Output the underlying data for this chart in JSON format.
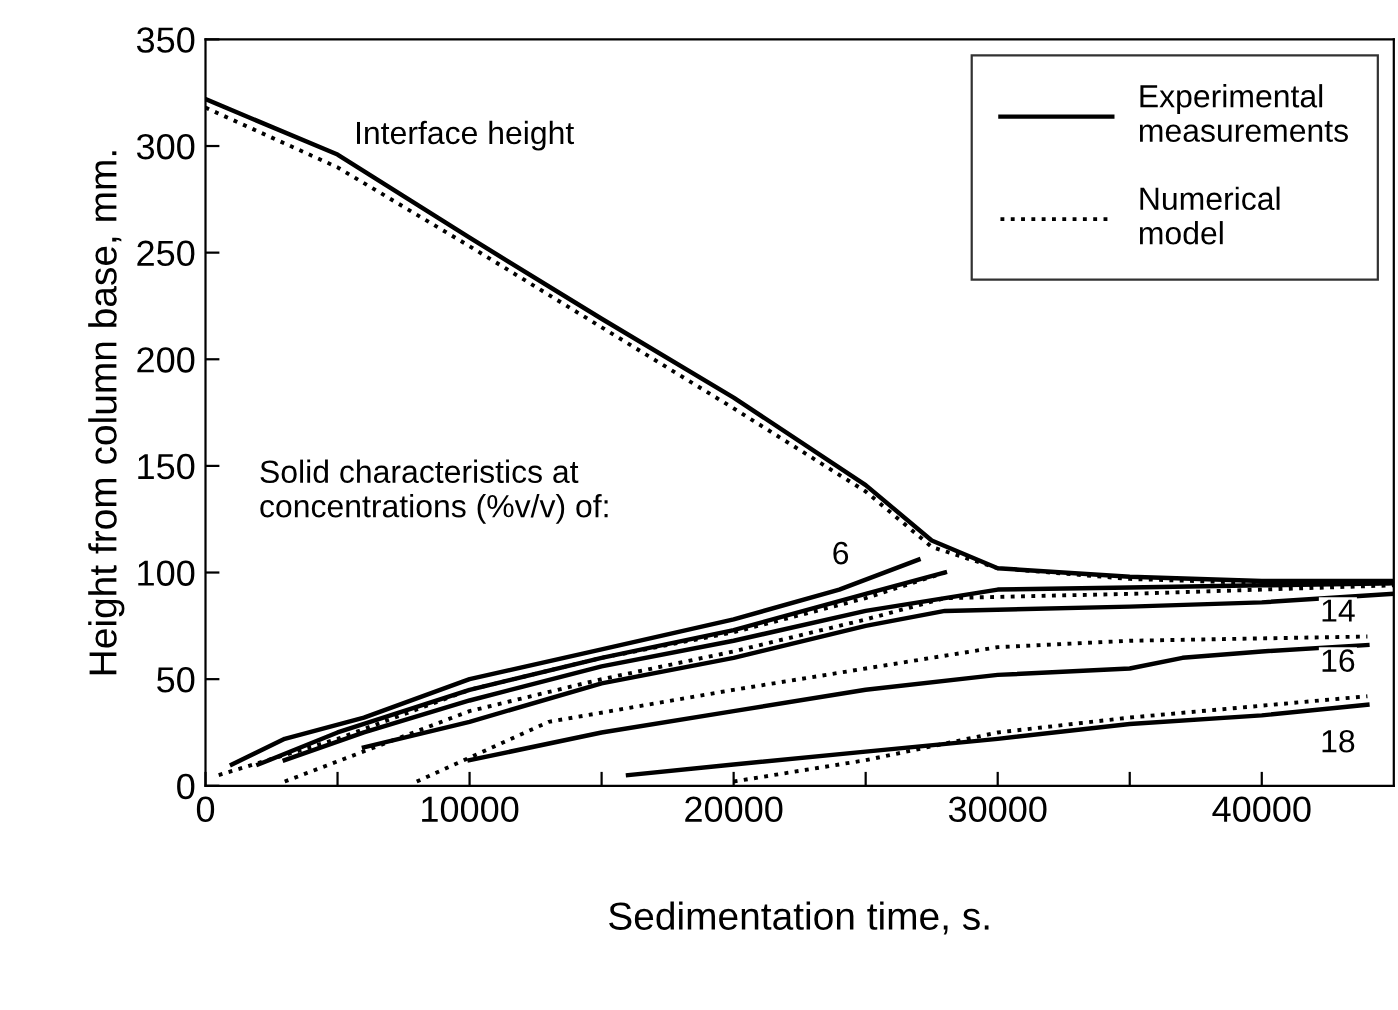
{
  "chart_data": {
    "type": "line",
    "xlabel": "Sedimentation time, s.",
    "ylabel": "Height from column base, mm.",
    "xlim": [
      0,
      45000
    ],
    "ylim": [
      0,
      350
    ],
    "xticks": [
      0,
      {
        "value": 5000,
        "label": null
      },
      10000,
      {
        "value": 15000,
        "label": null
      },
      20000,
      {
        "value": 25000,
        "label": null
      },
      30000,
      {
        "value": 35000,
        "label": null
      },
      40000
    ],
    "yticks": [
      0,
      50,
      100,
      150,
      200,
      250,
      300,
      350
    ],
    "grid": false,
    "legend": "top right",
    "marker": "none",
    "annotations": [
      "Interface height",
      "Solid characteristics at\nconcentrations (%v/v) of:",
      "6",
      "14",
      "16",
      "18"
    ],
    "series": [
      {
        "name": "Experimental\nmeasurements",
        "color": "#000000",
        "line_style": "solid",
        "x": [
          0,
          5000,
          10000,
          15000,
          20000,
          25000,
          27500,
          30000,
          35000,
          40000,
          45000
        ],
        "values": [
          322,
          296,
          257,
          219,
          182,
          141,
          115,
          102,
          98,
          96,
          96
        ]
      },
      {
        "name": "Numerical\nmodel",
        "color": "#000000",
        "line_style": "dotted",
        "x": [
          0,
          5000,
          10000,
          15000,
          20000,
          25000,
          27500,
          30000,
          35000,
          40000,
          45000
        ],
        "values": [
          318,
          290,
          253,
          215,
          177,
          138,
          112,
          102,
          97,
          95,
          95
        ]
      },
      {
        "color": "#000000",
        "line_style": "solid",
        "x": [
          1000,
          3000,
          6000,
          10000,
          15000,
          20000,
          24000,
          27000
        ],
        "values": [
          10,
          22,
          32,
          50,
          64,
          78,
          92,
          106
        ]
      },
      {
        "color": "#000000",
        "line_style": "solid",
        "x": [
          2000,
          5000,
          10000,
          15000,
          20000,
          25000,
          28000
        ],
        "values": [
          10,
          25,
          45,
          60,
          73,
          90,
          100
        ]
      },
      {
        "color": "#000000",
        "line_style": "solid",
        "x": [
          3000,
          6000,
          10000,
          15000,
          20000,
          25000,
          30000,
          35000,
          40000,
          45000
        ],
        "values": [
          12,
          25,
          40,
          56,
          68,
          82,
          92,
          93,
          94,
          95
        ]
      },
      {
        "color": "#000000",
        "line_style": "solid",
        "x": [
          6000,
          10000,
          15000,
          20000,
          25000,
          28000,
          35000,
          40000,
          45000
        ],
        "values": [
          18,
          30,
          48,
          60,
          75,
          82,
          84,
          86,
          90
        ]
      },
      {
        "color": "#000000",
        "line_style": "solid",
        "x": [
          10000,
          15000,
          20000,
          25000,
          30000,
          35000,
          37000,
          40000,
          44000
        ],
        "values": [
          12,
          25,
          35,
          45,
          52,
          55,
          60,
          63,
          66
        ]
      },
      {
        "color": "#000000",
        "line_style": "solid",
        "x": [
          16000,
          20000,
          25000,
          30000,
          35000,
          40000,
          44000
        ],
        "values": [
          5,
          10,
          16,
          22,
          29,
          33,
          38
        ]
      },
      {
        "color": "#000000",
        "line_style": "dotted",
        "x": [
          500,
          5000,
          10000,
          15000,
          20000,
          25000,
          28000
        ],
        "values": [
          5,
          22,
          45,
          60,
          72,
          88,
          100
        ]
      },
      {
        "color": "#000000",
        "line_style": "dotted",
        "x": [
          3000,
          10000,
          15000,
          20000,
          25000,
          28000,
          35000,
          45000
        ],
        "values": [
          2,
          35,
          50,
          63,
          78,
          88,
          90,
          94
        ]
      },
      {
        "color": "#000000",
        "line_style": "dotted",
        "x": [
          8000,
          13000,
          20000,
          25000,
          30000,
          35000,
          44000
        ],
        "values": [
          2,
          30,
          45,
          55,
          65,
          68,
          70
        ]
      },
      {
        "color": "#000000",
        "line_style": "dotted",
        "x": [
          20000,
          25000,
          30000,
          35000,
          44000
        ],
        "values": [
          2,
          12,
          25,
          32,
          42
        ]
      }
    ]
  }
}
